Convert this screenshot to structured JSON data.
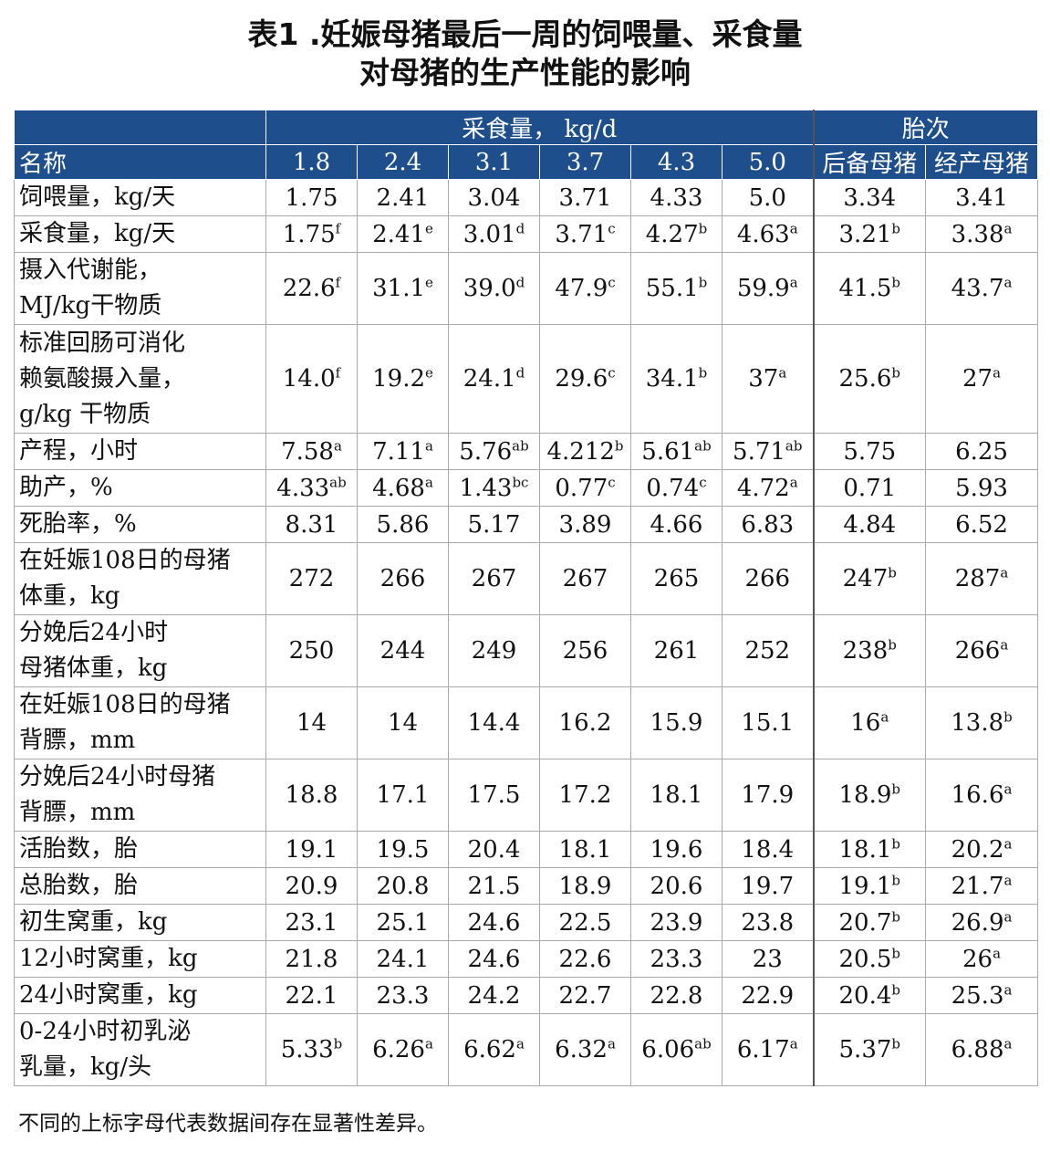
{
  "title_line1": "表1 .妊娠母猪最后一周的饲喂量、采食量",
  "title_line2": "对母猪的生产性能的影响",
  "header": {
    "group_intake": "采食量， kg/d",
    "group_parity": "胎次",
    "name_col": "名称",
    "columns": [
      "1.8",
      "2.4",
      "3.1",
      "3.7",
      "4.3",
      "5.0",
      "后备母猪",
      "经产母猪"
    ]
  },
  "rows": [
    {
      "name": "饲喂量，kg/天",
      "cells": [
        [
          "1.75",
          ""
        ],
        [
          "2.41",
          ""
        ],
        [
          "3.04",
          ""
        ],
        [
          "3.71",
          ""
        ],
        [
          "4.33",
          ""
        ],
        [
          "5.0",
          ""
        ],
        [
          "3.34",
          ""
        ],
        [
          "3.41",
          ""
        ]
      ]
    },
    {
      "name": "采食量，kg/天",
      "cells": [
        [
          "1.75",
          "f"
        ],
        [
          "2.41",
          "e"
        ],
        [
          "3.01",
          "d"
        ],
        [
          "3.71",
          "c"
        ],
        [
          "4.27",
          "b"
        ],
        [
          "4.63",
          "a"
        ],
        [
          "3.21",
          "b"
        ],
        [
          "3.38",
          "a"
        ]
      ]
    },
    {
      "name": "摄入代谢能，\nMJ/kg干物质",
      "cells": [
        [
          "22.6",
          "f"
        ],
        [
          "31.1",
          "e"
        ],
        [
          "39.0",
          "d"
        ],
        [
          "47.9",
          "c"
        ],
        [
          "55.1",
          "b"
        ],
        [
          "59.9",
          "a"
        ],
        [
          "41.5",
          "b"
        ],
        [
          "43.7",
          "a"
        ]
      ]
    },
    {
      "name": "标准回肠可消化\n赖氨酸摄入量，\ng/kg 干物质",
      "cells": [
        [
          "14.0",
          "f"
        ],
        [
          "19.2",
          "e"
        ],
        [
          "24.1",
          "d"
        ],
        [
          "29.6",
          "c"
        ],
        [
          "34.1",
          "b"
        ],
        [
          "37",
          "a"
        ],
        [
          "25.6",
          "b"
        ],
        [
          "27",
          "a"
        ]
      ]
    },
    {
      "name": "产程，小时",
      "cells": [
        [
          "7.58",
          "a"
        ],
        [
          "7.11",
          "a"
        ],
        [
          "5.76",
          "ab"
        ],
        [
          "4.212",
          "b"
        ],
        [
          "5.61",
          "ab"
        ],
        [
          "5.71",
          "ab"
        ],
        [
          "5.75",
          ""
        ],
        [
          "6.25",
          ""
        ]
      ]
    },
    {
      "name": "助产，%",
      "cells": [
        [
          "4.33",
          "ab"
        ],
        [
          "4.68",
          "a"
        ],
        [
          "1.43",
          "bc"
        ],
        [
          "0.77",
          "c"
        ],
        [
          "0.74",
          "c"
        ],
        [
          "4.72",
          "a"
        ],
        [
          "0.71",
          ""
        ],
        [
          "5.93",
          ""
        ]
      ]
    },
    {
      "name": "死胎率，%",
      "cells": [
        [
          "8.31",
          ""
        ],
        [
          "5.86",
          ""
        ],
        [
          "5.17",
          ""
        ],
        [
          "3.89",
          ""
        ],
        [
          "4.66",
          ""
        ],
        [
          "6.83",
          ""
        ],
        [
          "4.84",
          ""
        ],
        [
          "6.52",
          ""
        ]
      ]
    },
    {
      "name": "在妊娠108日的母猪\n体重，kg",
      "cells": [
        [
          "272",
          ""
        ],
        [
          "266",
          ""
        ],
        [
          "267",
          ""
        ],
        [
          "267",
          ""
        ],
        [
          "265",
          ""
        ],
        [
          "266",
          ""
        ],
        [
          "247",
          "b"
        ],
        [
          "287",
          "a"
        ]
      ]
    },
    {
      "name": "分娩后24小时\n母猪体重，kg",
      "cells": [
        [
          "250",
          ""
        ],
        [
          "244",
          ""
        ],
        [
          "249",
          ""
        ],
        [
          "256",
          ""
        ],
        [
          "261",
          ""
        ],
        [
          "252",
          ""
        ],
        [
          "238",
          "b"
        ],
        [
          "266",
          "a"
        ]
      ]
    },
    {
      "name": "在妊娠108日的母猪\n背膘，mm",
      "cells": [
        [
          "14",
          ""
        ],
        [
          "14",
          ""
        ],
        [
          "14.4",
          ""
        ],
        [
          "16.2",
          ""
        ],
        [
          "15.9",
          ""
        ],
        [
          "15.1",
          ""
        ],
        [
          "16",
          "a"
        ],
        [
          "13.8",
          "b"
        ]
      ]
    },
    {
      "name": "分娩后24小时母猪\n背膘，mm",
      "cells": [
        [
          "18.8",
          ""
        ],
        [
          "17.1",
          ""
        ],
        [
          "17.5",
          ""
        ],
        [
          "17.2",
          ""
        ],
        [
          "18.1",
          ""
        ],
        [
          "17.9",
          ""
        ],
        [
          "18.9",
          "b"
        ],
        [
          "16.6",
          "a"
        ]
      ]
    },
    {
      "name": "活胎数，胎",
      "cells": [
        [
          "19.1",
          ""
        ],
        [
          "19.5",
          ""
        ],
        [
          "20.4",
          ""
        ],
        [
          "18.1",
          ""
        ],
        [
          "19.6",
          ""
        ],
        [
          "18.4",
          ""
        ],
        [
          "18.1",
          "b"
        ],
        [
          "20.2",
          "a"
        ]
      ]
    },
    {
      "name": "总胎数，胎",
      "cells": [
        [
          "20.9",
          ""
        ],
        [
          "20.8",
          ""
        ],
        [
          "21.5",
          ""
        ],
        [
          "18.9",
          ""
        ],
        [
          "20.6",
          ""
        ],
        [
          "19.7",
          ""
        ],
        [
          "19.1",
          "b"
        ],
        [
          "21.7",
          "a"
        ]
      ]
    },
    {
      "name": "初生窝重，kg",
      "cells": [
        [
          "23.1",
          ""
        ],
        [
          "25.1",
          ""
        ],
        [
          "24.6",
          ""
        ],
        [
          "22.5",
          ""
        ],
        [
          "23.9",
          ""
        ],
        [
          "23.8",
          ""
        ],
        [
          "20.7",
          "b"
        ],
        [
          "26.9",
          "a"
        ]
      ]
    },
    {
      "name": "12小时窝重，kg",
      "cells": [
        [
          "21.8",
          ""
        ],
        [
          "24.1",
          ""
        ],
        [
          "24.6",
          ""
        ],
        [
          "22.6",
          ""
        ],
        [
          "23.3",
          ""
        ],
        [
          "23",
          ""
        ],
        [
          "20.5",
          "b"
        ],
        [
          "26",
          "a"
        ]
      ]
    },
    {
      "name": "24小时窝重，kg",
      "cells": [
        [
          "22.1",
          ""
        ],
        [
          "23.3",
          ""
        ],
        [
          "24.2",
          ""
        ],
        [
          "22.7",
          ""
        ],
        [
          "22.8",
          ""
        ],
        [
          "22.9",
          ""
        ],
        [
          "20.4",
          "b"
        ],
        [
          "25.3",
          "a"
        ]
      ]
    },
    {
      "name": "0-24小时初乳泌\n乳量，kg/头",
      "cells": [
        [
          "5.33",
          "b"
        ],
        [
          "6.26",
          "a"
        ],
        [
          "6.62",
          "a"
        ],
        [
          "6.32",
          "a"
        ],
        [
          "6.06",
          "ab"
        ],
        [
          "6.17",
          "a"
        ],
        [
          "5.37",
          "b"
        ],
        [
          "6.88",
          "a"
        ]
      ]
    }
  ],
  "footnote": "不同的上标字母代表数据间存在显著性差异。"
}
